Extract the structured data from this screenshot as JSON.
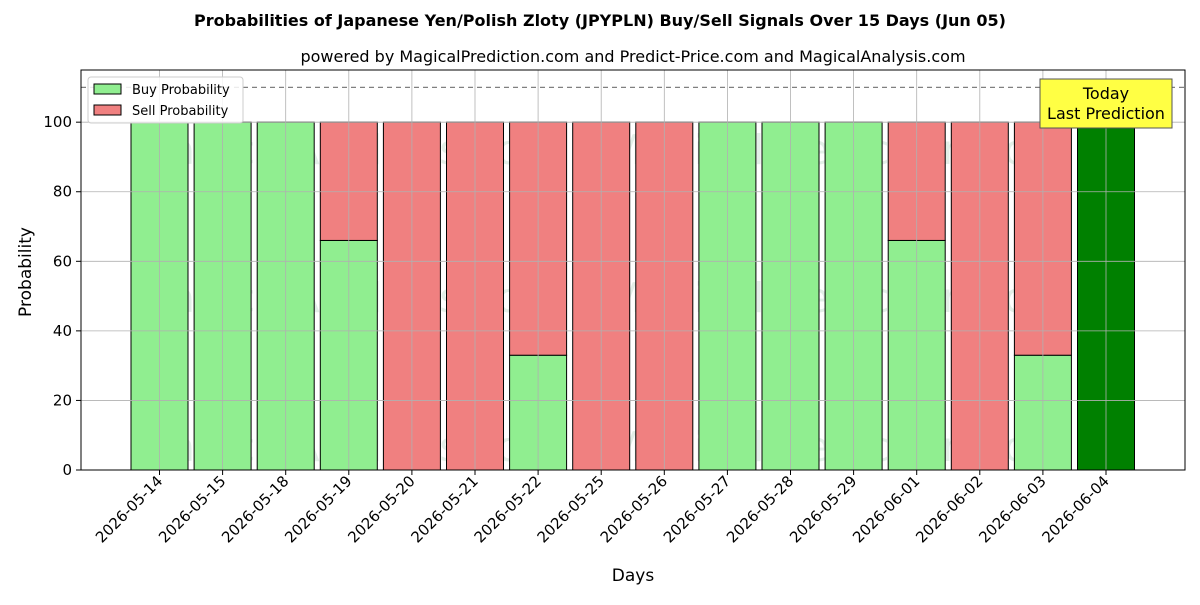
{
  "colors": {
    "buy": "#90ee90",
    "sell": "#f08080",
    "today": "#008000",
    "annotation_bg": "#ffff44",
    "grid": "#b0b0b0",
    "threshold_line": "#808080"
  },
  "watermarks": [
    "MagicalAnalysis.com",
    "MagicalPrediction.com"
  ],
  "chart_data": {
    "type": "bar",
    "stacked": true,
    "title": "Probabilities of Japanese Yen/Polish Zloty (JPYPLN) Buy/Sell Signals Over 15 Days (Jun 05)",
    "subtitle": "powered by MagicalPrediction.com and Predict-Price.com and MagicalAnalysis.com",
    "xlabel": "Days",
    "ylabel": "Probability",
    "ylim": [
      0,
      115
    ],
    "yticks": [
      0,
      20,
      40,
      60,
      80,
      100
    ],
    "grid": true,
    "legend_position": "top-left",
    "reference_line": 110,
    "categories": [
      "2026-05-14",
      "2026-05-15",
      "2026-05-18",
      "2026-05-19",
      "2026-05-20",
      "2026-05-21",
      "2026-05-22",
      "2026-05-25",
      "2026-05-26",
      "2026-05-27",
      "2026-05-28",
      "2026-05-29",
      "2026-06-01",
      "2026-06-02",
      "2026-06-03",
      "2026-06-04"
    ],
    "series": [
      {
        "name": "Buy Probability",
        "values": [
          100,
          100,
          100,
          66,
          0,
          0,
          33,
          0,
          0,
          100,
          100,
          100,
          66,
          0,
          33,
          100
        ]
      },
      {
        "name": "Sell Probability",
        "values": [
          0,
          0,
          0,
          34,
          100,
          100,
          67,
          100,
          100,
          0,
          0,
          0,
          34,
          100,
          67,
          0
        ]
      }
    ],
    "annotation": {
      "lines": [
        "Today",
        "Last Prediction"
      ],
      "category": "2026-06-04"
    }
  }
}
